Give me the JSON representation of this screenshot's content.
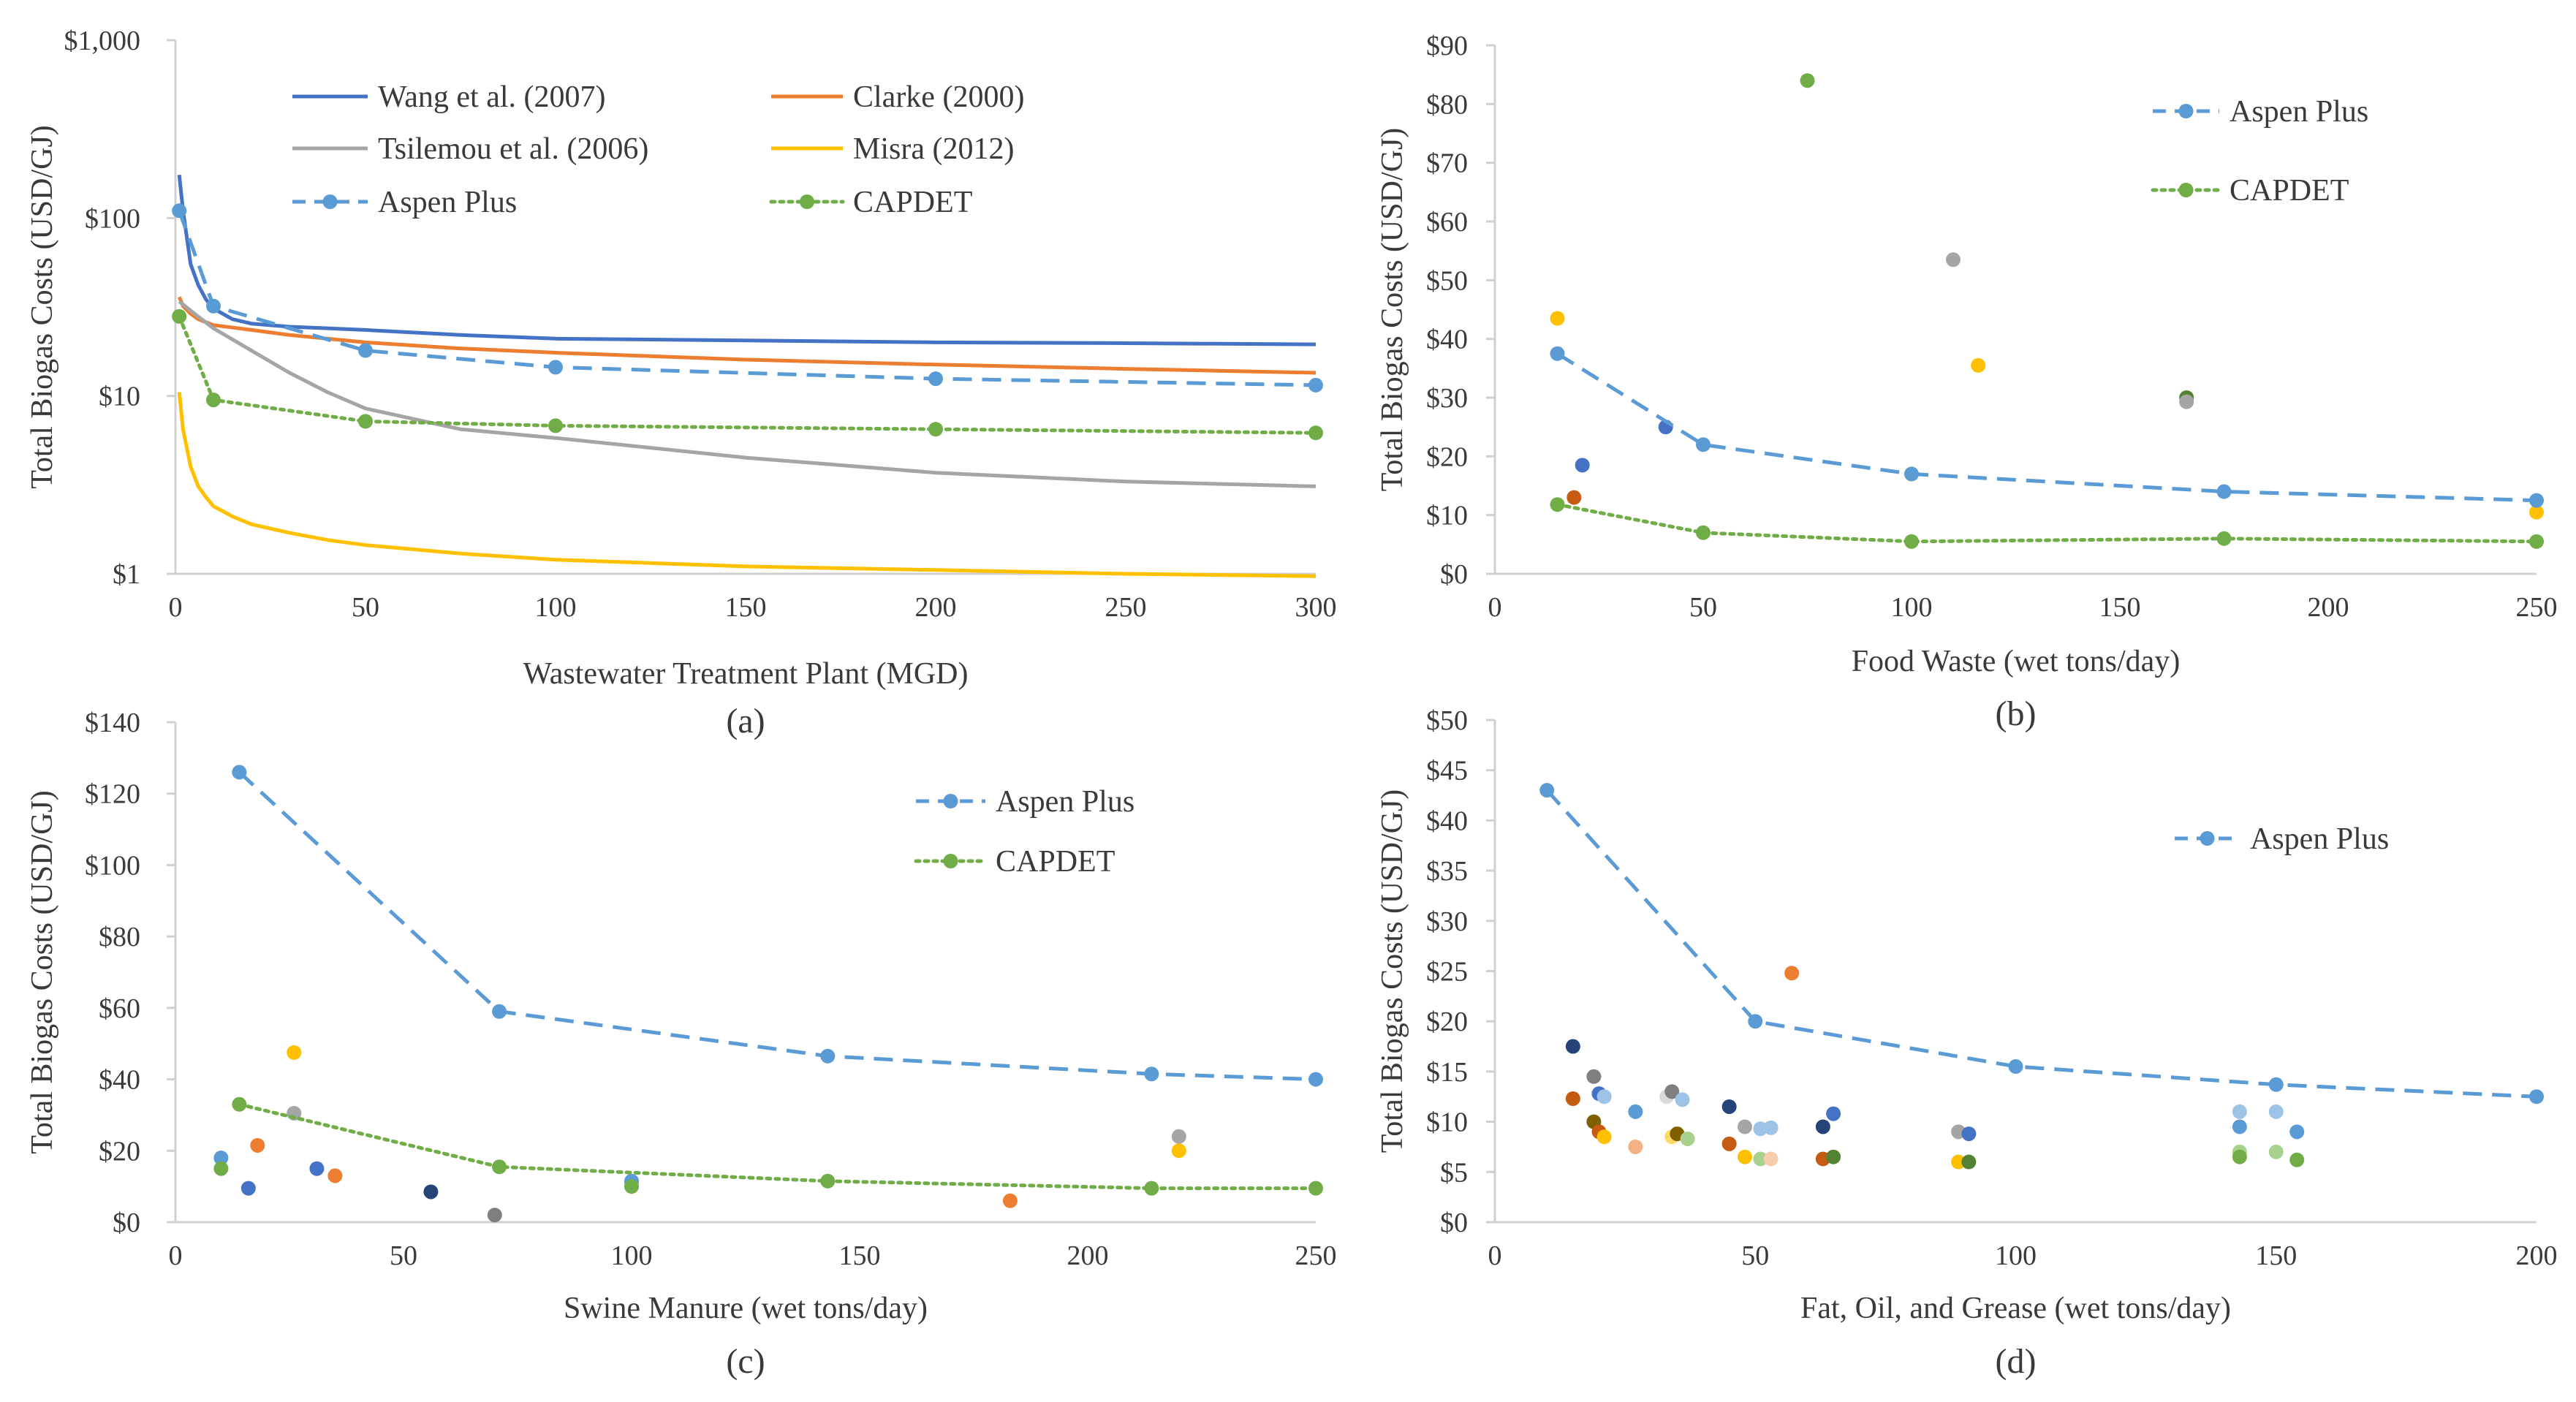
{
  "colors": {
    "axis": "#d0d0d0",
    "text": "#3a3a3a",
    "aspen": "#5b9bd5",
    "capdet": "#70ad47",
    "wang": "#4472c4",
    "clarke": "#ed7d31",
    "tsilemou": "#a5a5a5",
    "misra": "#ffc000"
  },
  "chart_data": [
    {
      "id": "a",
      "type": "line",
      "panel_label": "(a)",
      "xlabel": "Wastewater Treatment Plant (MGD)",
      "ylabel": "Total Biogas Costs (USD/GJ)",
      "yscale": "log",
      "xlim": [
        0,
        300
      ],
      "ylim": [
        1,
        1000
      ],
      "xticks": [
        0,
        50,
        100,
        150,
        200,
        250,
        300
      ],
      "xtick_labels": [
        "0",
        "50",
        "100",
        "150",
        "200",
        "250",
        "300"
      ],
      "yticks": [
        1,
        10,
        100,
        1000
      ],
      "ytick_labels": [
        "$1",
        "$10",
        "$100",
        "$1,000"
      ],
      "legend_position": "top",
      "series": [
        {
          "name": "Wang et al. (2007)",
          "style": "solid",
          "color": "#4472c4",
          "x": [
            1,
            2,
            4,
            6,
            8,
            10,
            15,
            20,
            30,
            40,
            50,
            75,
            100,
            150,
            200,
            250,
            300
          ],
          "y": [
            175,
            110,
            55,
            42,
            35,
            31,
            27,
            25.5,
            24.5,
            24,
            23.5,
            22,
            21,
            20.5,
            20,
            19.8,
            19.5
          ]
        },
        {
          "name": "Clarke (2000)",
          "style": "solid",
          "color": "#ed7d31",
          "x": [
            1,
            2,
            4,
            6,
            8,
            10,
            20,
            30,
            50,
            75,
            100,
            150,
            200,
            250,
            300
          ],
          "y": [
            36,
            32,
            29,
            27,
            26,
            25,
            23.5,
            22,
            20,
            18.5,
            17.5,
            16,
            15,
            14.2,
            13.5
          ]
        },
        {
          "name": "Tsilemou et al. (2006)",
          "style": "solid",
          "color": "#a5a5a5",
          "x": [
            1,
            5,
            10,
            20,
            30,
            40,
            50,
            75,
            100,
            150,
            200,
            250,
            300
          ],
          "y": [
            34,
            29,
            24,
            18,
            13.5,
            10.5,
            8.5,
            6.5,
            5.8,
            4.5,
            3.7,
            3.3,
            3.1
          ]
        },
        {
          "name": "Misra (2012)",
          "style": "solid",
          "color": "#ffc000",
          "x": [
            1,
            2,
            4,
            6,
            8,
            10,
            15,
            20,
            30,
            40,
            50,
            75,
            100,
            150,
            200,
            250,
            300
          ],
          "y": [
            10.5,
            6.5,
            4,
            3.1,
            2.7,
            2.4,
            2.1,
            1.9,
            1.7,
            1.55,
            1.45,
            1.3,
            1.2,
            1.1,
            1.05,
            1.0,
            0.97
          ]
        },
        {
          "name": "Aspen Plus",
          "style": "dashed",
          "color": "#5b9bd5",
          "x": [
            1,
            10,
            50,
            100,
            200,
            300
          ],
          "y": [
            110,
            32,
            18,
            14.5,
            12.5,
            11.5
          ]
        },
        {
          "name": "CAPDET",
          "style": "dotted",
          "color": "#70ad47",
          "x": [
            1,
            10,
            50,
            100,
            200,
            300
          ],
          "y": [
            28,
            9.5,
            7.2,
            6.8,
            6.5,
            6.2
          ]
        }
      ]
    },
    {
      "id": "b",
      "type": "line",
      "panel_label": "(b)",
      "xlabel": "Food Waste (wet tons/day)",
      "ylabel": "Total Biogas Costs (USD/GJ)",
      "yscale": "linear",
      "xlim": [
        0,
        250
      ],
      "ylim": [
        0,
        90
      ],
      "xticks": [
        0,
        50,
        100,
        150,
        200,
        250
      ],
      "xtick_labels": [
        "0",
        "50",
        "100",
        "150",
        "200",
        "250"
      ],
      "yticks": [
        0,
        10,
        20,
        30,
        40,
        50,
        60,
        70,
        80,
        90
      ],
      "ytick_labels": [
        "$0",
        "$10",
        "$20",
        "$30",
        "$40",
        "$50",
        "$60",
        "$70",
        "$80",
        "$90"
      ],
      "legend_position": "top-right",
      "series": [
        {
          "name": "Aspen Plus",
          "style": "dashed",
          "color": "#5b9bd5",
          "x": [
            15,
            50,
            100,
            175,
            250
          ],
          "y": [
            37.5,
            22,
            17,
            14,
            12.5
          ]
        },
        {
          "name": "CAPDET",
          "style": "dotted",
          "color": "#70ad47",
          "x": [
            15,
            50,
            100,
            175,
            250
          ],
          "y": [
            11.8,
            7,
            5.5,
            6,
            5.5
          ]
        }
      ],
      "scatter": [
        {
          "x": 15,
          "y": 43.5,
          "color": "#ffc000"
        },
        {
          "x": 19,
          "y": 13,
          "color": "#c55a11"
        },
        {
          "x": 21,
          "y": 18.5,
          "color": "#4472c4"
        },
        {
          "x": 41,
          "y": 25,
          "color": "#4472c4"
        },
        {
          "x": 75,
          "y": 84,
          "color": "#70ad47"
        },
        {
          "x": 100,
          "y": 17,
          "color": "#ffc000"
        },
        {
          "x": 110,
          "y": 53.5,
          "color": "#a5a5a5"
        },
        {
          "x": 116,
          "y": 35.5,
          "color": "#ffc000"
        },
        {
          "x": 166,
          "y": 30,
          "color": "#548235"
        },
        {
          "x": 166,
          "y": 29.3,
          "color": "#a5a5a5"
        },
        {
          "x": 250,
          "y": 10.5,
          "color": "#ffc000"
        }
      ]
    },
    {
      "id": "c",
      "type": "line",
      "panel_label": "(c)",
      "xlabel": "Swine Manure (wet tons/day)",
      "ylabel": "Total Biogas Costs (USD/GJ)",
      "yscale": "linear",
      "xlim": [
        0,
        250
      ],
      "ylim": [
        0,
        140
      ],
      "xticks": [
        0,
        50,
        100,
        150,
        200,
        250
      ],
      "xtick_labels": [
        "0",
        "50",
        "100",
        "150",
        "200",
        "250"
      ],
      "yticks": [
        0,
        20,
        40,
        60,
        80,
        100,
        120,
        140
      ],
      "ytick_labels": [
        "$0",
        "$20",
        "$40",
        "$60",
        "$80",
        "$100",
        "$120",
        "$140"
      ],
      "legend_position": "top-right",
      "series": [
        {
          "name": "Aspen Plus",
          "style": "dashed",
          "color": "#5b9bd5",
          "x": [
            14,
            71,
            143,
            214,
            250
          ],
          "y": [
            126,
            59,
            46.5,
            41.5,
            40
          ]
        },
        {
          "name": "CAPDET",
          "style": "dotted",
          "color": "#70ad47",
          "x": [
            14,
            71,
            143,
            214,
            250
          ],
          "y": [
            33,
            15.5,
            11.5,
            9.5,
            9.5
          ]
        }
      ],
      "scatter": [
        {
          "x": 10,
          "y": 18,
          "color": "#5b9bd5"
        },
        {
          "x": 10,
          "y": 15,
          "color": "#70ad47"
        },
        {
          "x": 16,
          "y": 9.5,
          "color": "#4472c4"
        },
        {
          "x": 18,
          "y": 21.5,
          "color": "#ed7d31"
        },
        {
          "x": 26,
          "y": 47.5,
          "color": "#ffc000"
        },
        {
          "x": 26,
          "y": 30.5,
          "color": "#a5a5a5"
        },
        {
          "x": 31,
          "y": 15,
          "color": "#4472c4"
        },
        {
          "x": 35,
          "y": 13,
          "color": "#ed7d31"
        },
        {
          "x": 56,
          "y": 8.5,
          "color": "#264478"
        },
        {
          "x": 70,
          "y": 2,
          "color": "#7f7f7f"
        },
        {
          "x": 100,
          "y": 11.5,
          "color": "#5b9bd5"
        },
        {
          "x": 100,
          "y": 10,
          "color": "#70ad47"
        },
        {
          "x": 183,
          "y": 6,
          "color": "#ed7d31"
        },
        {
          "x": 220,
          "y": 24,
          "color": "#a5a5a5"
        },
        {
          "x": 220,
          "y": 20,
          "color": "#ffc000"
        }
      ]
    },
    {
      "id": "d",
      "type": "line",
      "panel_label": "(d)",
      "xlabel": "Fat, Oil, and Grease (wet tons/day)",
      "ylabel": "Total Biogas Costs (USD/GJ)",
      "yscale": "linear",
      "xlim": [
        0,
        200
      ],
      "ylim": [
        0,
        50
      ],
      "xticks": [
        0,
        50,
        100,
        150,
        200
      ],
      "xtick_labels": [
        "0",
        "50",
        "100",
        "150",
        "200"
      ],
      "yticks": [
        0,
        5,
        10,
        15,
        20,
        25,
        30,
        35,
        40,
        45,
        50
      ],
      "ytick_labels": [
        "$0",
        "$5",
        "$10",
        "$15",
        "$20",
        "$25",
        "$30",
        "$35",
        "$40",
        "$45",
        "$50"
      ],
      "legend_position": "top-right",
      "series": [
        {
          "name": "Aspen Plus",
          "style": "dashed",
          "color": "#5b9bd5",
          "x": [
            10,
            50,
            100,
            150,
            200
          ],
          "y": [
            43,
            20,
            15.5,
            13.7,
            12.5
          ]
        }
      ],
      "scatter": [
        {
          "x": 15,
          "y": 17.5,
          "color": "#264478"
        },
        {
          "x": 15,
          "y": 12.3,
          "color": "#c55a11"
        },
        {
          "x": 19,
          "y": 14.5,
          "color": "#7f7f7f"
        },
        {
          "x": 19,
          "y": 10,
          "color": "#7f6000"
        },
        {
          "x": 20,
          "y": 12.8,
          "color": "#4472c4"
        },
        {
          "x": 21,
          "y": 12.5,
          "color": "#9dc3e6"
        },
        {
          "x": 20,
          "y": 9,
          "color": "#c55a11"
        },
        {
          "x": 21,
          "y": 8.5,
          "color": "#ffc000"
        },
        {
          "x": 27,
          "y": 11,
          "color": "#5b9bd5"
        },
        {
          "x": 27,
          "y": 7.5,
          "color": "#f4b183"
        },
        {
          "x": 33,
          "y": 12.5,
          "color": "#d9d9d9"
        },
        {
          "x": 34,
          "y": 13,
          "color": "#7f7f7f"
        },
        {
          "x": 34,
          "y": 8.5,
          "color": "#ffd966"
        },
        {
          "x": 35,
          "y": 8.8,
          "color": "#7f6000"
        },
        {
          "x": 36,
          "y": 12.2,
          "color": "#9dc3e6"
        },
        {
          "x": 37,
          "y": 8.3,
          "color": "#a9d18e"
        },
        {
          "x": 45,
          "y": 11.5,
          "color": "#264478"
        },
        {
          "x": 45,
          "y": 7.8,
          "color": "#c55a11"
        },
        {
          "x": 48,
          "y": 9.5,
          "color": "#a5a5a5"
        },
        {
          "x": 48,
          "y": 6.5,
          "color": "#ffc000"
        },
        {
          "x": 51,
          "y": 9.3,
          "color": "#9dc3e6"
        },
        {
          "x": 51,
          "y": 6.3,
          "color": "#a9d18e"
        },
        {
          "x": 53,
          "y": 9.4,
          "color": "#9dc3e6"
        },
        {
          "x": 53,
          "y": 6.3,
          "color": "#f8cbad"
        },
        {
          "x": 57,
          "y": 24.8,
          "color": "#ed7d31"
        },
        {
          "x": 63,
          "y": 9.5,
          "color": "#264478"
        },
        {
          "x": 63,
          "y": 6.3,
          "color": "#c55a11"
        },
        {
          "x": 65,
          "y": 10.8,
          "color": "#4472c4"
        },
        {
          "x": 65,
          "y": 6.5,
          "color": "#548235"
        },
        {
          "x": 89,
          "y": 9,
          "color": "#a5a5a5"
        },
        {
          "x": 89,
          "y": 6,
          "color": "#ffc000"
        },
        {
          "x": 91,
          "y": 8.8,
          "color": "#4472c4"
        },
        {
          "x": 91,
          "y": 6,
          "color": "#548235"
        },
        {
          "x": 143,
          "y": 11,
          "color": "#9dc3e6"
        },
        {
          "x": 143,
          "y": 9.5,
          "color": "#5b9bd5"
        },
        {
          "x": 143,
          "y": 7,
          "color": "#a9d18e"
        },
        {
          "x": 143,
          "y": 6.5,
          "color": "#70ad47"
        },
        {
          "x": 150,
          "y": 11,
          "color": "#9dc3e6"
        },
        {
          "x": 150,
          "y": 7,
          "color": "#a9d18e"
        },
        {
          "x": 154,
          "y": 9,
          "color": "#5b9bd5"
        },
        {
          "x": 154,
          "y": 6.2,
          "color": "#70ad47"
        }
      ]
    }
  ]
}
